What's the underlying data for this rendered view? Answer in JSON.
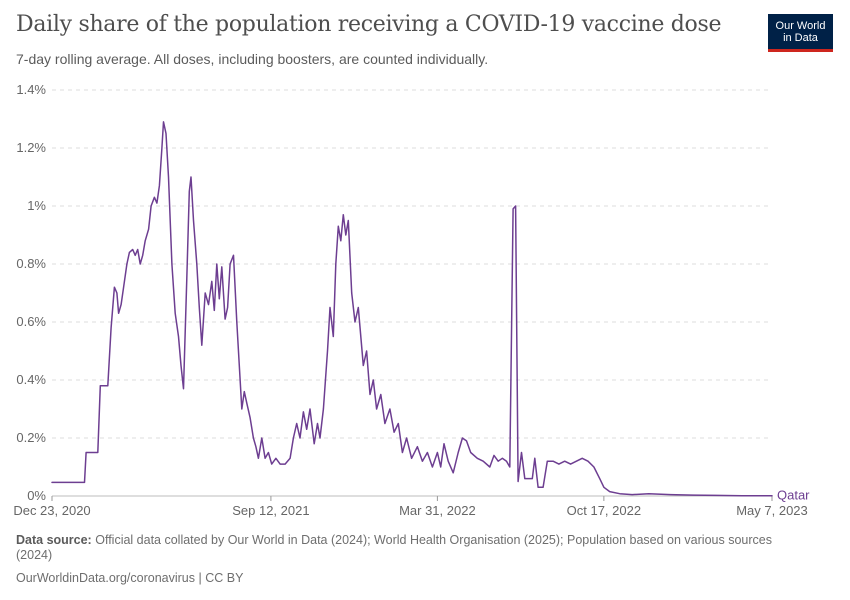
{
  "header": {
    "title": "Daily share of the population receiving a COVID-19 vaccine dose",
    "subtitle": "7-day rolling average. All doses, including boosters, are counted individually."
  },
  "logo": {
    "line1": "Our World",
    "line2": "in Data",
    "bg_color": "#002147",
    "accent_color": "#ce261e"
  },
  "footer": {
    "source_label": "Data source:",
    "source_text": "Official data collated by Our World in Data (2024); World Health Organisation (2025); Population based on various sources (2024)",
    "url": "OurWorldinData.org/coronavirus",
    "separator": "|",
    "license": "CC BY"
  },
  "chart_data": {
    "type": "line",
    "title": "Daily share of the population receiving a COVID-19 vaccine dose",
    "subtitle": "7-day rolling average. All doses, including boosters, are counted individually.",
    "xlabel": "",
    "ylabel": "",
    "x_range": [
      "2020-12-23",
      "2023-05-07"
    ],
    "ylim": [
      0,
      1.4
    ],
    "y_ticks": [
      {
        "value": 0,
        "label": "0%"
      },
      {
        "value": 0.2,
        "label": "0.2%"
      },
      {
        "value": 0.4,
        "label": "0.4%"
      },
      {
        "value": 0.6,
        "label": "0.6%"
      },
      {
        "value": 0.8,
        "label": "0.8%"
      },
      {
        "value": 1.0,
        "label": "1%"
      },
      {
        "value": 1.2,
        "label": "1.2%"
      },
      {
        "value": 1.4,
        "label": "1.4%"
      }
    ],
    "x_ticks": [
      {
        "date": "2020-12-23",
        "label": "Dec 23, 2020"
      },
      {
        "date": "2021-09-12",
        "label": "Sep 12, 2021"
      },
      {
        "date": "2022-03-31",
        "label": "Mar 31, 2022"
      },
      {
        "date": "2022-10-17",
        "label": "Oct 17, 2022"
      },
      {
        "date": "2023-05-07",
        "label": "May 7, 2023"
      }
    ],
    "grid": "horizontal dashed",
    "series": [
      {
        "name": "Qatar",
        "color": "#6d3e91",
        "points": [
          [
            "2020-12-23",
            0.047
          ],
          [
            "2021-01-31",
            0.047
          ],
          [
            "2021-02-02",
            0.15
          ],
          [
            "2021-02-16",
            0.15
          ],
          [
            "2021-02-19",
            0.38
          ],
          [
            "2021-02-28",
            0.38
          ],
          [
            "2021-03-04",
            0.58
          ],
          [
            "2021-03-08",
            0.72
          ],
          [
            "2021-03-11",
            0.7
          ],
          [
            "2021-03-13",
            0.63
          ],
          [
            "2021-03-16",
            0.66
          ],
          [
            "2021-03-19",
            0.72
          ],
          [
            "2021-03-23",
            0.8
          ],
          [
            "2021-03-26",
            0.84
          ],
          [
            "2021-03-30",
            0.85
          ],
          [
            "2021-04-02",
            0.83
          ],
          [
            "2021-04-05",
            0.85
          ],
          [
            "2021-04-08",
            0.8
          ],
          [
            "2021-04-11",
            0.83
          ],
          [
            "2021-04-14",
            0.88
          ],
          [
            "2021-04-18",
            0.92
          ],
          [
            "2021-04-21",
            1.0
          ],
          [
            "2021-04-25",
            1.03
          ],
          [
            "2021-04-28",
            1.01
          ],
          [
            "2021-05-01",
            1.07
          ],
          [
            "2021-05-04",
            1.2
          ],
          [
            "2021-05-06",
            1.29
          ],
          [
            "2021-05-09",
            1.25
          ],
          [
            "2021-05-12",
            1.1
          ],
          [
            "2021-05-16",
            0.8
          ],
          [
            "2021-05-20",
            0.63
          ],
          [
            "2021-05-24",
            0.55
          ],
          [
            "2021-05-27",
            0.45
          ],
          [
            "2021-05-30",
            0.37
          ],
          [
            "2021-06-03",
            0.75
          ],
          [
            "2021-06-06",
            1.05
          ],
          [
            "2021-06-08",
            1.1
          ],
          [
            "2021-06-11",
            0.95
          ],
          [
            "2021-06-15",
            0.8
          ],
          [
            "2021-06-18",
            0.65
          ],
          [
            "2021-06-21",
            0.52
          ],
          [
            "2021-06-25",
            0.7
          ],
          [
            "2021-06-29",
            0.66
          ],
          [
            "2021-07-03",
            0.74
          ],
          [
            "2021-07-06",
            0.64
          ],
          [
            "2021-07-09",
            0.8
          ],
          [
            "2021-07-12",
            0.68
          ],
          [
            "2021-07-15",
            0.79
          ],
          [
            "2021-07-19",
            0.61
          ],
          [
            "2021-07-22",
            0.65
          ],
          [
            "2021-07-25",
            0.8
          ],
          [
            "2021-07-29",
            0.83
          ],
          [
            "2021-08-02",
            0.6
          ],
          [
            "2021-08-05",
            0.45
          ],
          [
            "2021-08-08",
            0.3
          ],
          [
            "2021-08-11",
            0.36
          ],
          [
            "2021-08-14",
            0.32
          ],
          [
            "2021-08-18",
            0.27
          ],
          [
            "2021-08-22",
            0.2
          ],
          [
            "2021-08-25",
            0.17
          ],
          [
            "2021-08-28",
            0.13
          ],
          [
            "2021-09-01",
            0.2
          ],
          [
            "2021-09-05",
            0.13
          ],
          [
            "2021-09-09",
            0.15
          ],
          [
            "2021-09-13",
            0.11
          ],
          [
            "2021-09-18",
            0.13
          ],
          [
            "2021-09-23",
            0.11
          ],
          [
            "2021-09-29",
            0.11
          ],
          [
            "2021-10-05",
            0.13
          ],
          [
            "2021-10-09",
            0.2
          ],
          [
            "2021-10-13",
            0.25
          ],
          [
            "2021-10-17",
            0.2
          ],
          [
            "2021-10-21",
            0.29
          ],
          [
            "2021-10-25",
            0.23
          ],
          [
            "2021-10-29",
            0.3
          ],
          [
            "2021-11-03",
            0.18
          ],
          [
            "2021-11-07",
            0.25
          ],
          [
            "2021-11-10",
            0.2
          ],
          [
            "2021-11-14",
            0.3
          ],
          [
            "2021-11-19",
            0.5
          ],
          [
            "2021-11-22",
            0.65
          ],
          [
            "2021-11-26",
            0.55
          ],
          [
            "2021-11-29",
            0.8
          ],
          [
            "2021-12-02",
            0.93
          ],
          [
            "2021-12-05",
            0.88
          ],
          [
            "2021-12-08",
            0.97
          ],
          [
            "2021-12-11",
            0.9
          ],
          [
            "2021-12-14",
            0.95
          ],
          [
            "2021-12-18",
            0.7
          ],
          [
            "2021-12-22",
            0.6
          ],
          [
            "2021-12-26",
            0.65
          ],
          [
            "2022-01-01",
            0.45
          ],
          [
            "2022-01-05",
            0.5
          ],
          [
            "2022-01-09",
            0.35
          ],
          [
            "2022-01-13",
            0.4
          ],
          [
            "2022-01-17",
            0.3
          ],
          [
            "2022-01-22",
            0.35
          ],
          [
            "2022-01-27",
            0.25
          ],
          [
            "2022-02-02",
            0.3
          ],
          [
            "2022-02-07",
            0.22
          ],
          [
            "2022-02-12",
            0.25
          ],
          [
            "2022-02-17",
            0.15
          ],
          [
            "2022-02-22",
            0.2
          ],
          [
            "2022-02-28",
            0.13
          ],
          [
            "2022-03-07",
            0.17
          ],
          [
            "2022-03-13",
            0.12
          ],
          [
            "2022-03-19",
            0.15
          ],
          [
            "2022-03-25",
            0.1
          ],
          [
            "2022-03-31",
            0.15
          ],
          [
            "2022-04-04",
            0.1
          ],
          [
            "2022-04-08",
            0.18
          ],
          [
            "2022-04-13",
            0.12
          ],
          [
            "2022-04-19",
            0.08
          ],
          [
            "2022-04-25",
            0.15
          ],
          [
            "2022-04-30",
            0.2
          ],
          [
            "2022-05-05",
            0.19
          ],
          [
            "2022-05-10",
            0.15
          ],
          [
            "2022-05-18",
            0.13
          ],
          [
            "2022-05-25",
            0.12
          ],
          [
            "2022-06-02",
            0.1
          ],
          [
            "2022-06-07",
            0.14
          ],
          [
            "2022-06-12",
            0.12
          ],
          [
            "2022-06-17",
            0.13
          ],
          [
            "2022-06-22",
            0.12
          ],
          [
            "2022-06-26",
            0.1
          ],
          [
            "2022-06-30",
            0.99
          ],
          [
            "2022-07-03",
            1.0
          ],
          [
            "2022-07-06",
            0.05
          ],
          [
            "2022-07-10",
            0.15
          ],
          [
            "2022-07-14",
            0.06
          ],
          [
            "2022-07-19",
            0.06
          ],
          [
            "2022-07-23",
            0.06
          ],
          [
            "2022-07-26",
            0.13
          ],
          [
            "2022-07-30",
            0.03
          ],
          [
            "2022-08-05",
            0.03
          ],
          [
            "2022-08-10",
            0.12
          ],
          [
            "2022-08-17",
            0.12
          ],
          [
            "2022-08-24",
            0.11
          ],
          [
            "2022-08-31",
            0.12
          ],
          [
            "2022-09-07",
            0.11
          ],
          [
            "2022-09-14",
            0.12
          ],
          [
            "2022-09-21",
            0.13
          ],
          [
            "2022-09-28",
            0.12
          ],
          [
            "2022-10-05",
            0.1
          ],
          [
            "2022-10-12",
            0.06
          ],
          [
            "2022-10-17",
            0.03
          ],
          [
            "2022-10-24",
            0.015
          ],
          [
            "2022-11-05",
            0.008
          ],
          [
            "2022-11-20",
            0.005
          ],
          [
            "2022-12-10",
            0.008
          ],
          [
            "2023-01-05",
            0.005
          ],
          [
            "2023-02-01",
            0.003
          ],
          [
            "2023-03-01",
            0.002
          ],
          [
            "2023-04-01",
            0.001
          ],
          [
            "2023-05-07",
            0.001
          ]
        ]
      }
    ]
  }
}
